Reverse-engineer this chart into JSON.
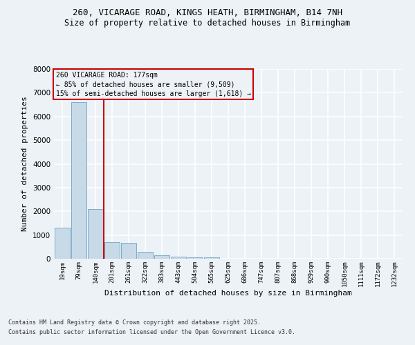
{
  "title_line1": "260, VICARAGE ROAD, KINGS HEATH, BIRMINGHAM, B14 7NH",
  "title_line2": "Size of property relative to detached houses in Birmingham",
  "xlabel": "Distribution of detached houses by size in Birmingham",
  "ylabel": "Number of detached properties",
  "footer_line1": "Contains HM Land Registry data © Crown copyright and database right 2025.",
  "footer_line2": "Contains public sector information licensed under the Open Government Licence v3.0.",
  "bin_labels": [
    "19sqm",
    "79sqm",
    "140sqm",
    "201sqm",
    "261sqm",
    "322sqm",
    "383sqm",
    "443sqm",
    "504sqm",
    "565sqm",
    "625sqm",
    "686sqm",
    "747sqm",
    "807sqm",
    "868sqm",
    "929sqm",
    "990sqm",
    "1050sqm",
    "1111sqm",
    "1172sqm",
    "1232sqm"
  ],
  "bar_values": [
    1300,
    6600,
    2100,
    700,
    680,
    300,
    150,
    100,
    60,
    60,
    10,
    5,
    5,
    5,
    5,
    5,
    3,
    3,
    2,
    2,
    1
  ],
  "bar_color": "#c8d9e8",
  "bar_edge_color": "#7aaec8",
  "background_color": "#edf2f7",
  "grid_color": "#ffffff",
  "annotation_line1": "260 VICARAGE ROAD: 177sqm",
  "annotation_line2": "← 85% of detached houses are smaller (9,509)",
  "annotation_line3": "15% of semi-detached houses are larger (1,618) →",
  "annotation_box_edge": "#cc0000",
  "vline_x_pos": 2.48,
  "ylim_max": 8000,
  "yticks": [
    0,
    1000,
    2000,
    3000,
    4000,
    5000,
    6000,
    7000,
    8000
  ]
}
